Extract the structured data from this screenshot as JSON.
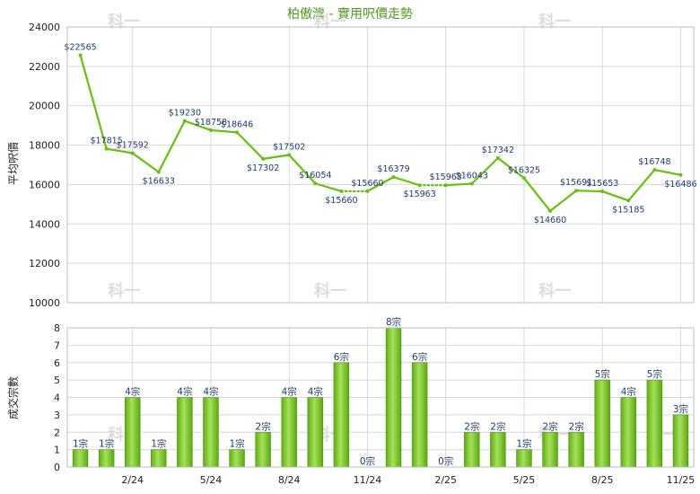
{
  "chart_data": [
    {
      "type": "line",
      "title": "柏傲灣 - 實用呎價走勢",
      "ylabel": "平均呎價",
      "ylim": [
        10000,
        24000
      ],
      "yticks": [
        10000,
        12000,
        14000,
        16000,
        18000,
        20000,
        22000,
        24000
      ],
      "grid": true,
      "color": "#66c010",
      "series": [
        {
          "points": [
            {
              "i": 0,
              "v": 22565,
              "label": "$22565"
            },
            {
              "i": 1,
              "v": 17815,
              "label": "$17815"
            },
            {
              "i": 2,
              "v": 17592,
              "label": "$17592"
            },
            {
              "i": 3,
              "v": 16633,
              "label": "$16633"
            },
            {
              "i": 4,
              "v": 19230,
              "label": "$19230"
            },
            {
              "i": 5,
              "v": 18758,
              "label": "$18758"
            },
            {
              "i": 6,
              "v": 18646,
              "label": "$18646"
            },
            {
              "i": 7,
              "v": 17302,
              "label": "$17302"
            },
            {
              "i": 8,
              "v": 17502,
              "label": "$17502"
            },
            {
              "i": 9,
              "v": 16054,
              "label": "$16054"
            },
            {
              "i": 10,
              "v": 15660,
              "label": "$15660"
            },
            {
              "i": 11,
              "v": 15660,
              "label": "$15660"
            },
            {
              "i": 12,
              "v": 16379,
              "label": "$16379"
            },
            {
              "i": 13,
              "v": 15963,
              "label": "$15963"
            },
            {
              "i": 14,
              "v": 15963,
              "label": "$15963"
            },
            {
              "i": 15,
              "v": 16043,
              "label": "$16043"
            },
            {
              "i": 16,
              "v": 17342,
              "label": "$17342"
            },
            {
              "i": 17,
              "v": 16325,
              "label": "$16325"
            },
            {
              "i": 18,
              "v": 14660,
              "label": "$14660"
            },
            {
              "i": 19,
              "v": 15691,
              "label": "$15691"
            },
            {
              "i": 20,
              "v": 15653,
              "label": "$15653"
            },
            {
              "i": 21,
              "v": 15185,
              "label": "$15185"
            },
            {
              "i": 22,
              "v": 16748,
              "label": "$16748"
            },
            {
              "i": 23,
              "v": 16486,
              "label": "$16486"
            }
          ],
          "dotted_segments": [
            [
              10,
              11
            ],
            [
              13,
              14
            ]
          ]
        }
      ]
    },
    {
      "type": "bar",
      "ylabel": "成交宗數",
      "ylim": [
        0,
        8
      ],
      "yticks": [
        0,
        1,
        2,
        3,
        4,
        5,
        6,
        7,
        8
      ],
      "grid": true,
      "bar_color": "#78c22a",
      "values": [
        1,
        1,
        4,
        1,
        4,
        4,
        1,
        2,
        4,
        4,
        6,
        0,
        8,
        6,
        0,
        2,
        2,
        1,
        2,
        2,
        5,
        4,
        5,
        3
      ],
      "value_labels": [
        "1宗",
        "1宗",
        "4宗",
        "1宗",
        "4宗",
        "4宗",
        "1宗",
        "2宗",
        "4宗",
        "4宗",
        "6宗",
        "0宗",
        "8宗",
        "6宗",
        "0宗",
        "2宗",
        "2宗",
        "1宗",
        "2宗",
        "2宗",
        "5宗",
        "4宗",
        "5宗",
        "3宗"
      ],
      "x_tick_labels": [
        {
          "i": 2,
          "label": "2/24"
        },
        {
          "i": 5,
          "label": "5/24"
        },
        {
          "i": 8,
          "label": "8/24"
        },
        {
          "i": 11,
          "label": "11/24"
        },
        {
          "i": 14,
          "label": "2/25"
        },
        {
          "i": 17,
          "label": "5/25"
        },
        {
          "i": 20,
          "label": "8/25"
        },
        {
          "i": 23,
          "label": "11/25"
        }
      ]
    }
  ],
  "watermark": "科一"
}
